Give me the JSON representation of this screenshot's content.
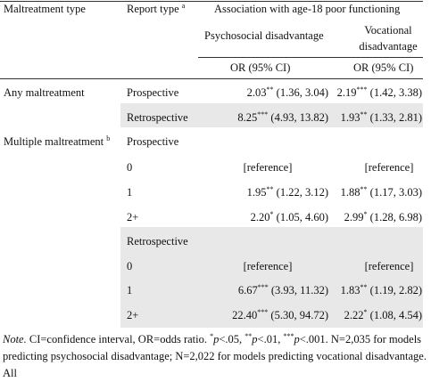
{
  "header": {
    "maltreatment_type": "Maltreatment type",
    "report_type": "Report type",
    "report_type_sup": "a",
    "association": "Association with age-18 poor functioning",
    "psychosocial": "Psychosocial disadvantage",
    "vocational_1": "Vocational",
    "vocational_2": "disadvantage",
    "or_psych": "OR (95% CI)",
    "or_voc": "OR (95% CI)"
  },
  "rows": [
    {
      "group": "Any maltreatment",
      "report": "Prospective",
      "psych": {
        "or": "2.03",
        "sig": "**",
        "ci": "(1.36, 3.04)"
      },
      "voc": {
        "or": "2.19",
        "sig": "***",
        "ci": "(1.42, 3.38)"
      }
    },
    {
      "report": "Retrospective",
      "shaded": true,
      "psych": {
        "or": "8.25",
        "sig": "***",
        "ci": "(4.93, 13.82)"
      },
      "voc": {
        "or": "1.93",
        "sig": "**",
        "ci": "(1.33, 2.81)"
      }
    },
    {
      "group": "Multiple maltreatment",
      "group_sup": "b",
      "report": "Prospective"
    },
    {
      "report": "0",
      "psych": {
        "ref": "[reference]"
      },
      "voc": {
        "ref": "[reference]"
      }
    },
    {
      "report": "1",
      "psych": {
        "or": "1.95",
        "sig": "**",
        "ci": "(1.22, 3.12)"
      },
      "voc": {
        "or": "1.88",
        "sig": "**",
        "ci": "(1.17, 3.03)"
      }
    },
    {
      "report": "2+",
      "psych": {
        "or": "2.20",
        "sig": "*",
        "ci": "(1.05, 4.60)"
      },
      "voc": {
        "or": "2.99",
        "sig": "*",
        "ci": "(1.28, 6.98)"
      }
    },
    {
      "report": "Retrospective",
      "shaded": true
    },
    {
      "report": "0",
      "shaded": true,
      "psych": {
        "ref": "[reference]"
      },
      "voc": {
        "ref": "[reference]"
      }
    },
    {
      "report": "1",
      "shaded": true,
      "psych": {
        "or": "6.67",
        "sig": "***",
        "ci": "(3.93, 11.32)"
      },
      "voc": {
        "or": "1.83",
        "sig": "**",
        "ci": "(1.19, 2.82)"
      }
    },
    {
      "report": "2+",
      "shaded": true,
      "psych": {
        "or": "22.40",
        "sig": "***",
        "ci": "(5.30, 94.72)"
      },
      "voc": {
        "or": "2.22",
        "sig": "*",
        "ci": "(1.08, 4.54)"
      }
    }
  ],
  "note": [
    {
      "text": "Note.",
      "style": "italic"
    },
    {
      "text": " CI=confidence interval, OR=odds ratio. ",
      "style": "plain"
    },
    {
      "text": "*",
      "style": "sup"
    },
    {
      "text": "p",
      "style": "italic"
    },
    {
      "text": "<.05, ",
      "style": "plain"
    },
    {
      "text": "**",
      "style": "sup"
    },
    {
      "text": "p",
      "style": "italic"
    },
    {
      "text": "<.01, ",
      "style": "plain"
    },
    {
      "text": "***",
      "style": "sup"
    },
    {
      "text": "p",
      "style": "italic"
    },
    {
      "text": "<.001. N=2,035 for models predicting psychosocial disadvantage; N=2,022 for models predicting vocational disadvantage. All",
      "style": "plain"
    }
  ]
}
